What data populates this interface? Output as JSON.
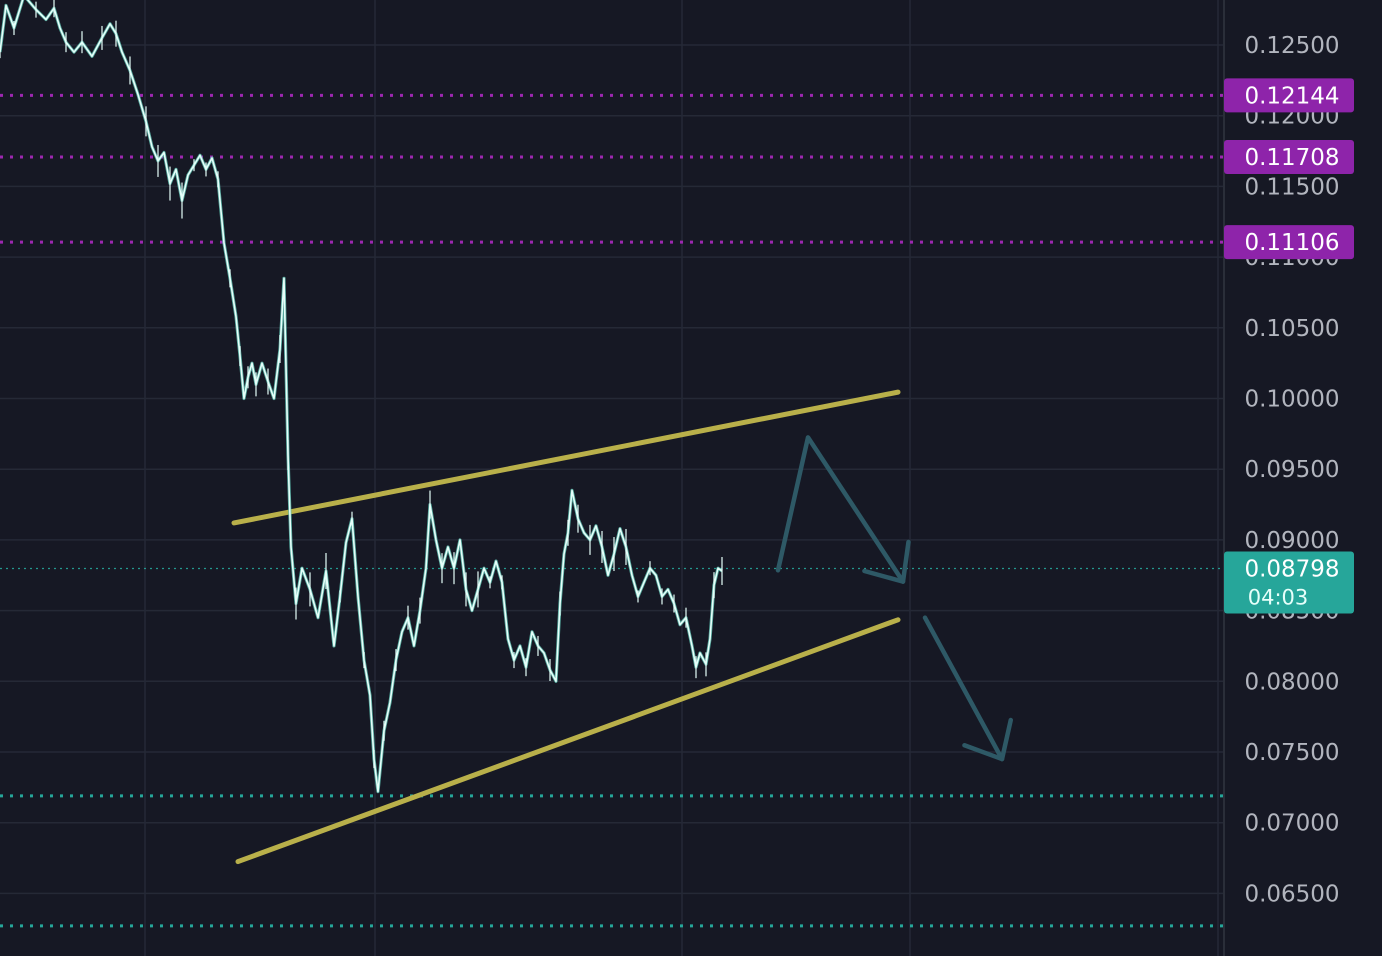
{
  "chart_data": {
    "type": "line",
    "title": "",
    "xlabel": "",
    "ylabel": "",
    "ylim": [
      0.0625,
      0.1285
    ],
    "y_ticks": [
      "0.12500",
      "0.12000",
      "0.11500",
      "0.11000",
      "0.10500",
      "0.10000",
      "0.09500",
      "0.09000",
      "0.08500",
      "0.08000",
      "0.07500",
      "0.07000",
      "0.06500"
    ],
    "y_tick_values": [
      0.125,
      0.12,
      0.115,
      0.11,
      0.105,
      0.1,
      0.095,
      0.09,
      0.085,
      0.08,
      0.075,
      0.07,
      0.065
    ],
    "x_range": [
      0,
      1000
    ],
    "series": [
      {
        "values": [
          [
            0,
            0.1245
          ],
          [
            6,
            0.1278
          ],
          [
            14,
            0.1262
          ],
          [
            24,
            0.1285
          ],
          [
            36,
            0.1275
          ],
          [
            46,
            0.1268
          ],
          [
            54,
            0.1276
          ],
          [
            60,
            0.1262
          ],
          [
            66,
            0.1252
          ],
          [
            74,
            0.1245
          ],
          [
            82,
            0.1252
          ],
          [
            92,
            0.1242
          ],
          [
            102,
            0.1255
          ],
          [
            110,
            0.1265
          ],
          [
            116,
            0.1258
          ],
          [
            122,
            0.1245
          ],
          [
            130,
            0.1232
          ],
          [
            138,
            0.1215
          ],
          [
            146,
            0.1196
          ],
          [
            152,
            0.1178
          ],
          [
            158,
            0.1168
          ],
          [
            164,
            0.1174
          ],
          [
            170,
            0.1152
          ],
          [
            176,
            0.1162
          ],
          [
            182,
            0.114
          ],
          [
            188,
            0.1158
          ],
          [
            194,
            0.1165
          ],
          [
            200,
            0.1172
          ],
          [
            206,
            0.1162
          ],
          [
            212,
            0.117
          ],
          [
            218,
            0.1155
          ],
          [
            224,
            0.111
          ],
          [
            230,
            0.1085
          ],
          [
            236,
            0.1058
          ],
          [
            240,
            0.103
          ],
          [
            244,
            0.1
          ],
          [
            248,
            0.1015
          ],
          [
            252,
            0.1025
          ],
          [
            256,
            0.101
          ],
          [
            262,
            0.1025
          ],
          [
            268,
            0.1012
          ],
          [
            274,
            0.1
          ],
          [
            280,
            0.1035
          ],
          [
            284,
            0.1085
          ],
          [
            288,
            0.096
          ],
          [
            291,
            0.0895
          ],
          [
            296,
            0.0855
          ],
          [
            302,
            0.088
          ],
          [
            310,
            0.0865
          ],
          [
            318,
            0.0845
          ],
          [
            326,
            0.0878
          ],
          [
            334,
            0.0825
          ],
          [
            340,
            0.086
          ],
          [
            346,
            0.0898
          ],
          [
            352,
            0.0915
          ],
          [
            358,
            0.086
          ],
          [
            364,
            0.0815
          ],
          [
            370,
            0.079
          ],
          [
            374,
            0.0745
          ],
          [
            378,
            0.0722
          ],
          [
            384,
            0.0765
          ],
          [
            390,
            0.0785
          ],
          [
            396,
            0.0815
          ],
          [
            402,
            0.0835
          ],
          [
            408,
            0.0845
          ],
          [
            414,
            0.0825
          ],
          [
            420,
            0.085
          ],
          [
            426,
            0.088
          ],
          [
            430,
            0.0925
          ],
          [
            436,
            0.09
          ],
          [
            442,
            0.088
          ],
          [
            448,
            0.0895
          ],
          [
            454,
            0.088
          ],
          [
            460,
            0.09
          ],
          [
            466,
            0.0865
          ],
          [
            472,
            0.085
          ],
          [
            478,
            0.0865
          ],
          [
            484,
            0.088
          ],
          [
            490,
            0.087
          ],
          [
            496,
            0.0885
          ],
          [
            502,
            0.087
          ],
          [
            508,
            0.083
          ],
          [
            514,
            0.0815
          ],
          [
            520,
            0.0825
          ],
          [
            526,
            0.081
          ],
          [
            532,
            0.0835
          ],
          [
            538,
            0.0825
          ],
          [
            544,
            0.082
          ],
          [
            550,
            0.0808
          ],
          [
            556,
            0.08
          ],
          [
            560,
            0.0855
          ],
          [
            564,
            0.089
          ],
          [
            568,
            0.0905
          ],
          [
            572,
            0.0935
          ],
          [
            578,
            0.0915
          ],
          [
            584,
            0.0905
          ],
          [
            590,
            0.09
          ],
          [
            596,
            0.091
          ],
          [
            602,
            0.0895
          ],
          [
            608,
            0.0875
          ],
          [
            614,
            0.089
          ],
          [
            620,
            0.0908
          ],
          [
            626,
            0.0895
          ],
          [
            632,
            0.0875
          ],
          [
            638,
            0.086
          ],
          [
            644,
            0.087
          ],
          [
            650,
            0.088
          ],
          [
            656,
            0.0875
          ],
          [
            662,
            0.086
          ],
          [
            668,
            0.0865
          ],
          [
            674,
            0.0855
          ],
          [
            680,
            0.084
          ],
          [
            686,
            0.0845
          ],
          [
            692,
            0.0825
          ],
          [
            696,
            0.081
          ],
          [
            700,
            0.082
          ],
          [
            706,
            0.0812
          ],
          [
            710,
            0.083
          ],
          [
            714,
            0.0868
          ],
          [
            718,
            0.088
          ],
          [
            722,
            0.0878
          ]
        ]
      }
    ],
    "horizontal_levels": [
      {
        "value": 0.12144,
        "label": "0.12144",
        "style": "dotted",
        "color": "#9c27b0"
      },
      {
        "value": 0.11708,
        "label": "0.11708",
        "style": "dotted",
        "color": "#9c27b0"
      },
      {
        "value": 0.11106,
        "label": "0.11106",
        "style": "dotted",
        "color": "#9c27b0"
      },
      {
        "value": 0.0719,
        "style": "dotted",
        "color": "#26a69a"
      },
      {
        "value": 0.0627,
        "style": "dotted",
        "color": "#26a69a"
      }
    ],
    "current_price": {
      "value": 0.08798,
      "label": "0.08798",
      "countdown": "04:03",
      "color": "#26a69a"
    },
    "trendlines": [
      {
        "from": [
          234,
          0.0912
        ],
        "to": [
          898,
          0.10045
        ],
        "color": "#b9b04a"
      },
      {
        "from": [
          238,
          0.06725
        ],
        "to": [
          898,
          0.08435
        ],
        "color": "#b9b04a"
      }
    ],
    "projection_arrows": [
      {
        "points": [
          [
            778,
            0.08785
          ],
          [
            808,
            0.09725
          ],
          [
            903,
            0.08705
          ]
        ],
        "color": "#2e5966"
      },
      {
        "points": [
          [
            925,
            0.0845
          ],
          [
            1002,
            0.0745
          ]
        ],
        "color": "#2e5966"
      }
    ],
    "grid": true,
    "colors": {
      "background": "#161824",
      "grid": "#252936",
      "price_line": "#e6fffa",
      "price_line_accent": "#5fbfb2",
      "axis_border": "#2a2e39"
    }
  }
}
